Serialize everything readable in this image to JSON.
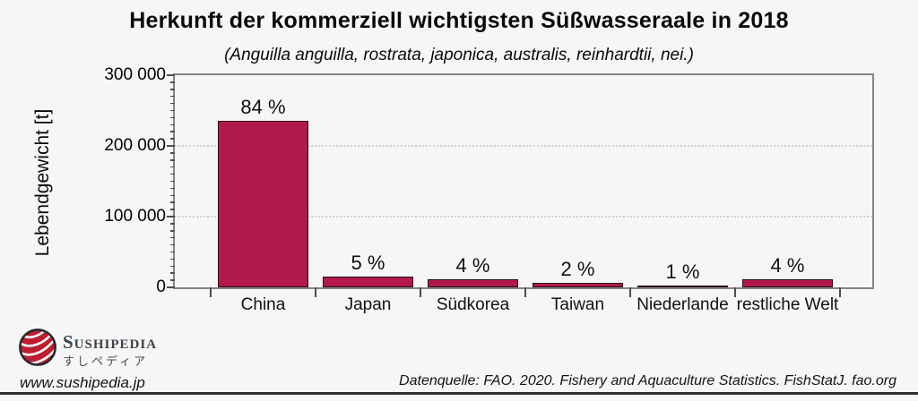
{
  "chart_data": {
    "type": "bar",
    "title": "Herkunft der kommerziell wichtigsten Süßwasseraale in 2018",
    "subtitle": "(Anguilla anguilla, rostrata, japonica, australis, reinhardtii, nei.)",
    "ylabel": "Lebendgewicht [t]",
    "xlabel": "",
    "ylim": [
      0,
      300000
    ],
    "ytick_values": [
      0,
      100000,
      200000,
      300000
    ],
    "ytick_labels": [
      "0",
      "100 000",
      "200 000",
      "300 000"
    ],
    "y_minor_tick_step": 10000,
    "grid_values": [
      100000,
      200000
    ],
    "grid": "dotted-horizontal",
    "legend": "none",
    "categories": [
      "China",
      "Japan",
      "Südkorea",
      "Taiwan",
      "Niederlande",
      "restliche Welt"
    ],
    "values": [
      235000,
      15000,
      11000,
      6000,
      3000,
      11000
    ],
    "percents": [
      84,
      5,
      4,
      2,
      1,
      4
    ],
    "percent_labels": [
      "84 %",
      "5 %",
      "4 %",
      "2 %",
      "1 %",
      "4 %"
    ],
    "bar_color": "#b1194a",
    "bar_border_color": "#2a0a18"
  },
  "footer": {
    "brand": "Sushipedia",
    "brand_jp": "すしペディア",
    "website": "www.sushipedia.jp",
    "source": "Datenquelle: FAO. 2020. Fishery and Aquaculture Statistics. FishStatJ. fao.org"
  },
  "colors": {
    "background": "#f6f6f7",
    "plot_border": "#858585",
    "axis": "#4d4d4d",
    "gridline": "#cfcfcf",
    "logo_red": "#bf1e2e",
    "logo_ring": "#24282d",
    "brand_text": "#3b4249",
    "bottom_rule": "#2e2e2e"
  }
}
